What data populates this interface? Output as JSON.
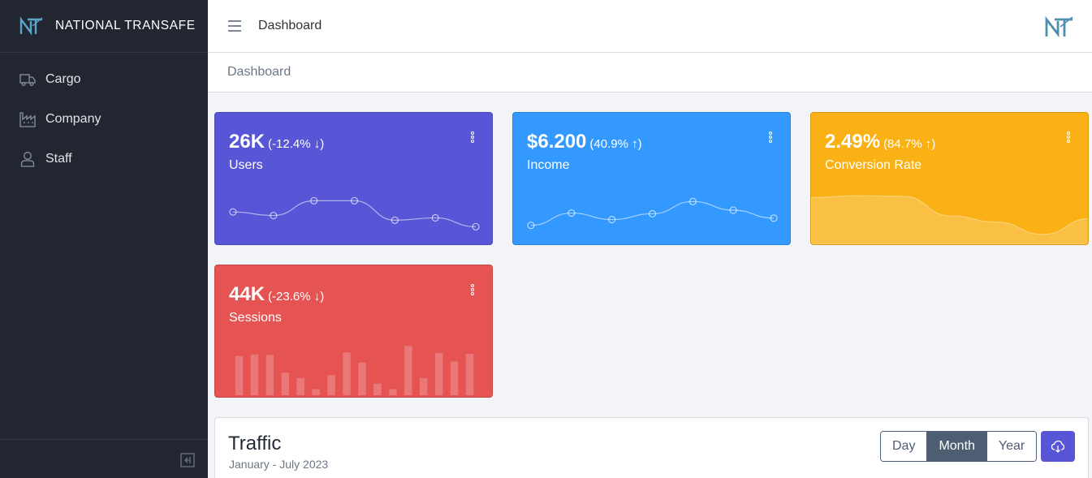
{
  "brand": {
    "name": "NATIONAL TRANSAFE"
  },
  "sidebar": {
    "items": [
      {
        "label": "Cargo",
        "icon": "truck-icon"
      },
      {
        "label": "Company",
        "icon": "factory-icon"
      },
      {
        "label": "Staff",
        "icon": "user-icon"
      }
    ],
    "collapse_icon": "collapse-sidebar-icon"
  },
  "header": {
    "title": "Dashboard",
    "menu_icon": "hamburger-icon"
  },
  "breadcrumb": {
    "current": "Dashboard"
  },
  "widgets": [
    {
      "value": "26K",
      "delta": "(-12.4% ↓)",
      "label": "Users",
      "color": "#5856d6",
      "chart": "line",
      "points": [
        65,
        59,
        84,
        84,
        51,
        55,
        40
      ]
    },
    {
      "value": "$6.200",
      "delta": "(40.9% ↑)",
      "label": "Income",
      "color": "#3399ff",
      "chart": "line",
      "points": [
        1,
        18,
        9,
        17,
        34,
        22,
        11
      ]
    },
    {
      "value": "2.49%",
      "delta": "(84.7% ↑)",
      "label": "Conversion Rate",
      "color": "#f9b115",
      "chart": "area",
      "points": [
        78,
        81,
        80,
        45,
        34,
        12,
        40
      ]
    },
    {
      "value": "44K",
      "delta": "(-23.6% ↓)",
      "label": "Sessions",
      "color": "#e55353",
      "chart": "bar",
      "points": [
        78,
        81,
        80,
        45,
        34,
        12,
        40,
        85,
        65,
        23,
        12,
        98,
        34,
        84,
        67,
        82
      ]
    }
  ],
  "traffic": {
    "title": "Traffic",
    "subtitle": "January - July 2023",
    "ranges": [
      "Day",
      "Month",
      "Year"
    ],
    "active_range": "Month",
    "download_icon": "cloud-download-icon"
  }
}
